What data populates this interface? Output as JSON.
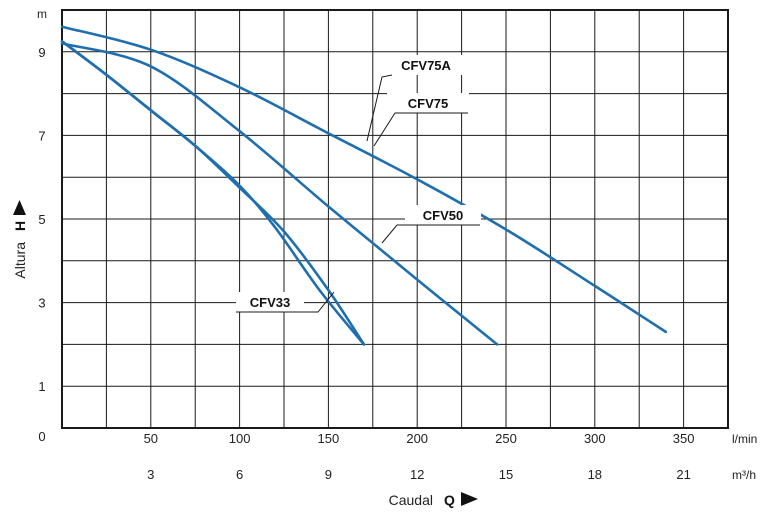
{
  "chart_data": {
    "type": "line",
    "x_units": {
      "primary": "l/min",
      "secondary": "m³/h"
    },
    "y_unit": "m",
    "x_ticks_primary": [
      "50",
      "100",
      "150",
      "200",
      "250",
      "300",
      "350"
    ],
    "x_ticks_secondary": [
      "3",
      "6",
      "9",
      "12",
      "15",
      "18",
      "21"
    ],
    "y_ticks": [
      "0",
      "1",
      "3",
      "5",
      "7",
      "9"
    ],
    "xlim": [
      0,
      375
    ],
    "ylim": [
      0,
      10
    ],
    "grid": true,
    "xlabel": {
      "text": "Caudal",
      "symbol": "Q"
    },
    "ylabel": {
      "text": "Altura",
      "symbol": "H"
    },
    "series": [
      {
        "name": "CFV75A",
        "color": "#1f6faf",
        "x": [
          0,
          50,
          100,
          150,
          200,
          250,
          300,
          340
        ],
        "y": [
          9.6,
          9.05,
          8.15,
          7.05,
          5.95,
          4.75,
          3.4,
          2.3
        ]
      },
      {
        "name": "CFV75",
        "color": "#1f6faf",
        "x": [
          0,
          50,
          100,
          150,
          200,
          245
        ],
        "y": [
          9.2,
          8.65,
          7.1,
          5.3,
          3.55,
          2.0
        ]
      },
      {
        "name": "CFV50",
        "color": "#1f6faf",
        "x": [
          0,
          25,
          50,
          75,
          100,
          125,
          150,
          170
        ],
        "y": [
          9.25,
          8.45,
          7.6,
          6.75,
          5.75,
          4.7,
          3.3,
          2.0
        ]
      },
      {
        "name": "CFV33",
        "color": "#1f6faf",
        "x": [
          0,
          25,
          50,
          75,
          100,
          120,
          145,
          170
        ],
        "y": [
          9.25,
          8.45,
          7.6,
          6.75,
          5.8,
          4.8,
          3.3,
          2.0
        ]
      }
    ]
  }
}
